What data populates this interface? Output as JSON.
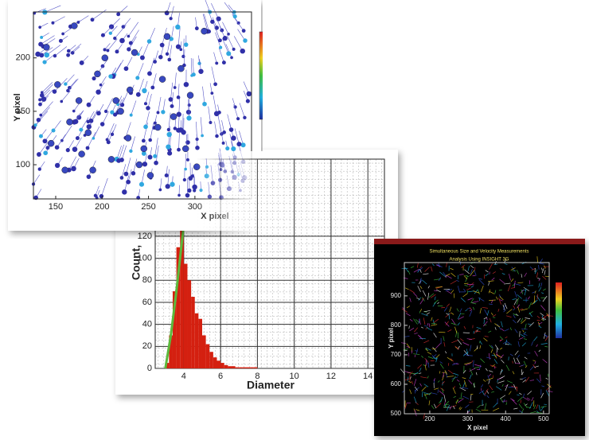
{
  "chart_data": [
    {
      "type": "scatter",
      "xlabel": "X pixel",
      "ylabel": "Y pixel",
      "xlim": [
        126,
        361
      ],
      "ylim": [
        68,
        243
      ],
      "xticks": [
        150,
        200,
        250,
        300
      ],
      "yticks": [
        100,
        150,
        200
      ],
      "color": "#3848c0",
      "x": [
        140,
        152,
        165,
        178,
        190,
        203,
        215,
        228,
        240,
        252,
        265,
        277,
        290,
        302,
        145,
        170,
        195,
        220,
        245,
        270,
        295,
        160,
        185,
        210,
        235,
        260,
        285,
        310,
        175,
        230
      ],
      "values": [
        210,
        175,
        140,
        110,
        95,
        200,
        160,
        125,
        100,
        90,
        180,
        145,
        115,
        98,
        120,
        230,
        185,
        150,
        115,
        220,
        165,
        95,
        130,
        105,
        205,
        135,
        190,
        225,
        160,
        170
      ]
    },
    {
      "type": "histogram",
      "xlabel": "Diameter",
      "ylabel": "Count,",
      "xlim": [
        2.45,
        14.9
      ],
      "ylim": [
        0,
        190
      ],
      "xticks": [
        4,
        6,
        8,
        10,
        12,
        14
      ],
      "yticks": [
        0,
        20,
        40,
        60,
        80,
        100,
        120
      ],
      "grid": true,
      "color": "#d42010",
      "bins": [
        3.0,
        3.2,
        3.4,
        3.6,
        3.8,
        4.0,
        4.2,
        4.4,
        4.6,
        4.8,
        5.0,
        5.2,
        5.4,
        5.6,
        5.8,
        6.0,
        6.2,
        6.4,
        6.6,
        6.8,
        7.0,
        7.2,
        7.4,
        7.6,
        7.8,
        8.0
      ],
      "values": [
        5,
        30,
        70,
        110,
        135,
        95,
        80,
        65,
        50,
        45,
        30,
        22,
        15,
        10,
        7,
        5,
        3,
        2,
        2,
        1,
        1,
        1,
        1,
        1,
        1
      ],
      "cumulative": {
        "color": "#5cb83c",
        "x": [
          3.0,
          3.3,
          3.6,
          3.9,
          4.2
        ],
        "values": [
          0,
          30,
          70,
          115,
          160
        ]
      }
    },
    {
      "type": "vector",
      "title": "Simultaneous Size and Velocity Measurements",
      "subtitle": "Analysis Using INSIGHT 3G",
      "xlabel": "X pixel",
      "ylabel": "Y pixel",
      "xlim": [
        133,
        515
      ],
      "ylim": [
        500,
        1013
      ],
      "xticks": [
        200,
        300,
        400,
        500
      ],
      "yticks": [
        500,
        600,
        700,
        800,
        900
      ]
    }
  ]
}
